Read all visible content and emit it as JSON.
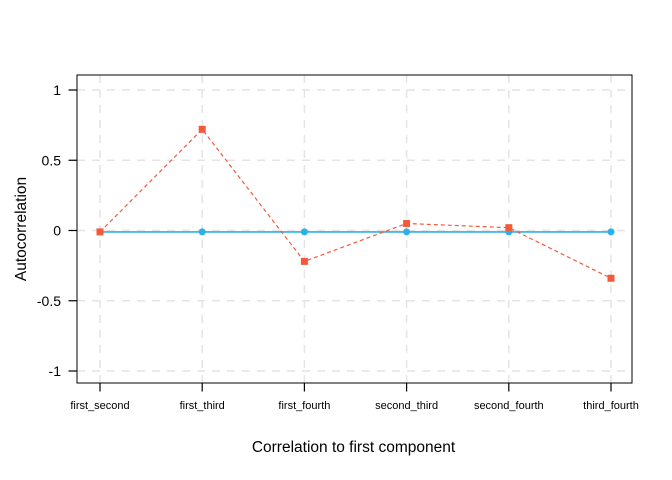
{
  "window": {
    "background": "#ffffff"
  },
  "chart_data": {
    "type": "line",
    "title": "",
    "xlabel": "Correlation to first component",
    "ylabel": "Autocorrelation",
    "categories": [
      "first_second",
      "first_third",
      "first_fourth",
      "second_third",
      "second_fourth",
      "third_fourth"
    ],
    "series": [
      {
        "id": "blue-solid-circles",
        "color": "#2bb1e8",
        "line_style": "solid",
        "marker": "circle",
        "values": [
          -0.01,
          -0.01,
          -0.01,
          -0.01,
          -0.01,
          -0.01
        ]
      },
      {
        "id": "red-dashed-squares",
        "color": "#f4593b",
        "line_style": "dashed",
        "marker": "square",
        "values": [
          -0.01,
          0.72,
          -0.22,
          0.05,
          0.02,
          -0.34
        ]
      }
    ],
    "ylim": [
      -1.09,
      1.11
    ],
    "yticks": [
      1,
      0.5,
      0,
      -0.5,
      -1
    ],
    "ytick_labels": [
      "1",
      "0.5",
      "0",
      "-0.5",
      "-1"
    ],
    "grid": true,
    "grid_style": "dashed",
    "grid_color": "#e4e4e4",
    "legend_position": "none",
    "box_color": "#000000"
  }
}
